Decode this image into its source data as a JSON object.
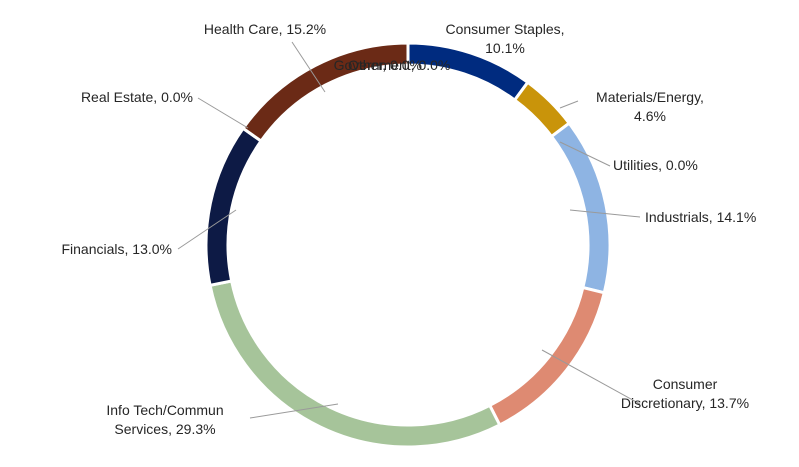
{
  "chart_data": {
    "type": "donut",
    "title": "",
    "categories": [
      "Consumer Staples",
      "Materials/Energy",
      "Utilities",
      "Industrials",
      "Consumer Discretionary",
      "Info Tech/Commun Services",
      "Financials",
      "Real Estate",
      "Health Care",
      "Government",
      "Other"
    ],
    "values": [
      10.1,
      4.6,
      0.0,
      14.1,
      13.7,
      29.3,
      13.0,
      0.0,
      15.2,
      0.0,
      0.0
    ],
    "unit": "%",
    "colors": [
      "#002b7f",
      "#c9940a",
      "#9a9a9a",
      "#8eb4e3",
      "#de8a72",
      "#a6c49a",
      "#0d1a45",
      "#7f7f7f",
      "#6b2a16",
      "#7f7f7f",
      "#7f7f7f"
    ],
    "labels": [
      {
        "lines": [
          "Consumer Staples,",
          "10.1%"
        ]
      },
      {
        "lines": [
          "Materials/Energy,",
          "4.6%"
        ]
      },
      {
        "lines": [
          "Utilities, 0.0%"
        ]
      },
      {
        "lines": [
          "Industrials, 14.1%"
        ]
      },
      {
        "lines": [
          "Consumer",
          "Discretionary, 13.7%"
        ]
      },
      {
        "lines": [
          "Info Tech/Commun",
          "Services, 29.3%"
        ]
      },
      {
        "lines": [
          "Financials, 13.0%"
        ]
      },
      {
        "lines": [
          "Real Estate, 0.0%"
        ]
      },
      {
        "lines": [
          "Health Care, 15.2%"
        ]
      },
      {
        "lines": [
          "Government, 0.0%"
        ]
      },
      {
        "lines": [
          "Other, 0.0%"
        ]
      }
    ]
  }
}
